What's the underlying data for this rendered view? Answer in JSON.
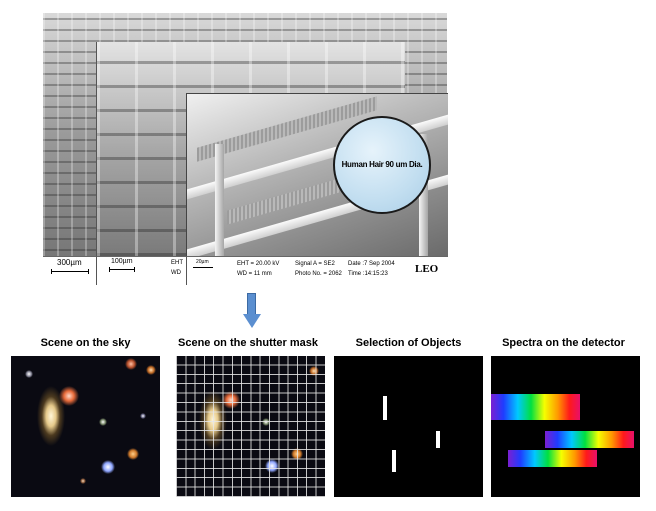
{
  "sem_image": {
    "inset_label": "Human Hair 90 um Dia.",
    "scale_bar_1": "300µm",
    "scale_bar_2": "100µm",
    "bar2_right_top": "EHT",
    "bar2_right_bottom": "WD",
    "scale_bar_3": "20µm",
    "eht": "EHT = 20.00 kV",
    "wd": "WD =  11 mm",
    "signal": "Signal A = SE2",
    "photo": "Photo No. = 2062",
    "date": "Date :7 Sep 2004",
    "time": "Time :14:15:23",
    "brand": "LEO"
  },
  "arrow": {
    "color": "#5b8fd0",
    "direction": "down"
  },
  "panels": [
    {
      "title": "Scene on the sky"
    },
    {
      "title": "Scene on the shutter mask"
    },
    {
      "title": "Selection of Objects"
    },
    {
      "title": "Spectra on the detector"
    }
  ]
}
